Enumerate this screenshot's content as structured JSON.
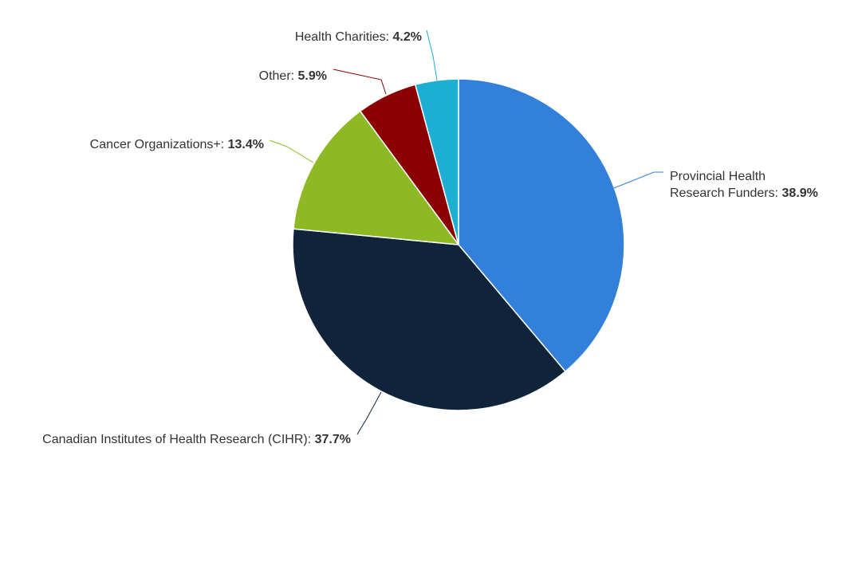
{
  "chart_data": {
    "type": "pie",
    "title": "",
    "slices": [
      {
        "name": "Provincial Health Research Funders",
        "value": 38.9,
        "label_lines": [
          "Provincial Health",
          "Research Funders: "
        ],
        "value_text": "38.9%",
        "color": "#3280DA"
      },
      {
        "name": "Canadian Institutes of Health Research (CIHR)",
        "value": 37.7,
        "label_lines": [
          "Canadian Institutes of Health Research (CIHR): "
        ],
        "value_text": "37.7%",
        "color": "#0F243B"
      },
      {
        "name": "Cancer Organizations+",
        "value": 13.4,
        "label_lines": [
          "Cancer Organizations+: "
        ],
        "value_text": "13.4%",
        "color": "#8DBA24"
      },
      {
        "name": "Other",
        "value": 5.9,
        "label_lines": [
          "Other: "
        ],
        "value_text": "5.9%",
        "color": "#8B0000"
      },
      {
        "name": "Health Charities",
        "value": 4.2,
        "label_lines": [
          "Health Charities: "
        ],
        "value_text": "4.2%",
        "color": "#1DAED3"
      }
    ],
    "start_angle": "top",
    "direction": "clockwise",
    "legend": "none (data labels with connectors)"
  }
}
